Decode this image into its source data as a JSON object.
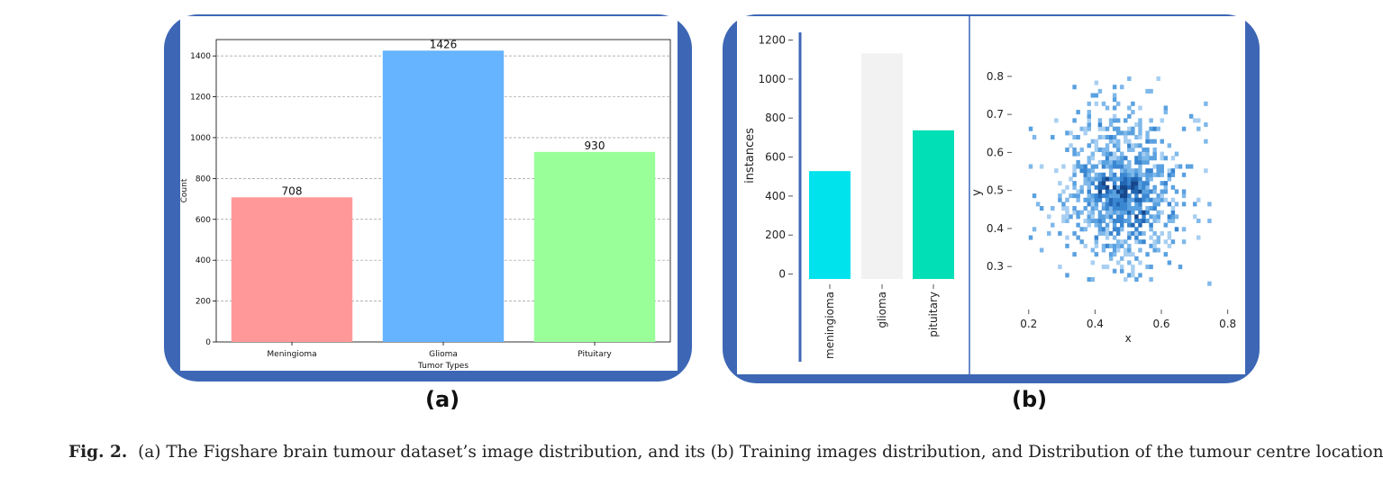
{
  "panel_labels": {
    "a": "(a)",
    "b": "(b)"
  },
  "caption": {
    "figure": "Fig. 2.",
    "text": "(a) The Figshare brain tumour dataset’s image distribution, and its (b) Training images distribution, and Distribution of the tumour centre location."
  },
  "colors": {
    "frame": "#3d67b5"
  },
  "chart_data": [
    {
      "type": "bar",
      "categories": [
        "Meningioma",
        "Glioma",
        "Pituitary"
      ],
      "values": [
        708,
        1426,
        930
      ],
      "data_labels": [
        "708",
        "1426",
        "930"
      ],
      "colors": [
        "#ff9999",
        "#66b3ff",
        "#99ff99"
      ],
      "xlabel": "Tumor Types",
      "ylabel": "Count",
      "ylim": [
        0,
        1480
      ],
      "yticks": [
        0,
        200,
        400,
        600,
        800,
        1000,
        1200,
        1400
      ],
      "grid": "horizontal dashed"
    },
    {
      "type": "bar",
      "categories": [
        "meningioma",
        "glioma",
        "pituitary"
      ],
      "values": [
        528,
        1132,
        737
      ],
      "colors": [
        "#00e3ec",
        "#f2f2f2",
        "#00dfb6"
      ],
      "xlabel": "",
      "ylabel": "instances",
      "ylim": [
        -25,
        1230
      ],
      "yticks": [
        0,
        200,
        400,
        600,
        800,
        1000,
        1200
      ]
    },
    {
      "type": "heatmap",
      "title": "",
      "xlabel": "x",
      "ylabel": "y",
      "xlim": [
        0.13,
        0.82
      ],
      "ylim": [
        0.22,
        0.84
      ],
      "xticks": [
        0.2,
        0.4,
        0.6,
        0.8
      ],
      "yticks": [
        0.3,
        0.4,
        0.5,
        0.6,
        0.7,
        0.8
      ],
      "bin_size": 0.011,
      "center": [
        0.47,
        0.5
      ],
      "spread": [
        0.095,
        0.1
      ],
      "hot_spots": [
        [
          0.42,
          0.5
        ],
        [
          0.5,
          0.5
        ],
        [
          0.53,
          0.42
        ]
      ],
      "x_range": [
        0.2,
        0.76
      ],
      "y_range": [
        0.25,
        0.79
      ]
    }
  ]
}
